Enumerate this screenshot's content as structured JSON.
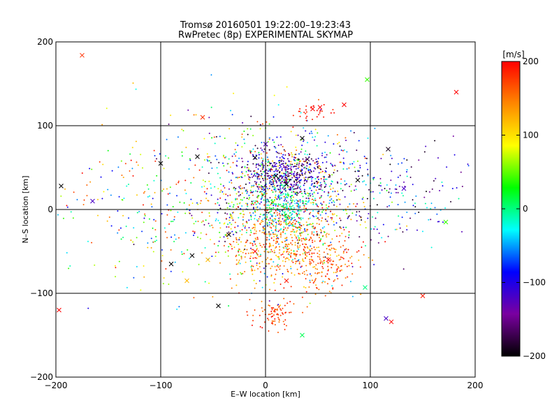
{
  "chart_data": {
    "type": "scatter",
    "title": "Tromsø 20160501 19:22:00–19:23:43",
    "subtitle": "RwPretec (8p) EXPERIMENTAL SKYMAP",
    "xlabel": "E–W location [km]",
    "ylabel": "N–S location [km]",
    "xlim": [
      -200,
      200
    ],
    "ylim": [
      -200,
      200
    ],
    "xticks": [
      -200,
      -100,
      0,
      100,
      200
    ],
    "yticks": [
      -200,
      -100,
      0,
      100,
      200
    ],
    "grid": true,
    "colorbar": {
      "label": "[m/s]",
      "range": [
        -200,
        200
      ],
      "ticks": [
        -200,
        -100,
        0,
        100,
        200
      ],
      "colors": [
        "#000000",
        "#7a00a0",
        "#0000ff",
        "#00ffff",
        "#00ff00",
        "#ffff00",
        "#ff8800",
        "#ff0000"
      ]
    },
    "series": [
      {
        "marker": "cross",
        "points": [
          {
            "x": -175,
            "y": 184,
            "v": 180
          },
          {
            "x": 182,
            "y": 140,
            "v": 200
          },
          {
            "x": 97,
            "y": 155,
            "v": 40
          },
          {
            "x": -60,
            "y": 110,
            "v": 180
          },
          {
            "x": -195,
            "y": 28,
            "v": -200
          },
          {
            "x": -165,
            "y": 10,
            "v": -120
          },
          {
            "x": -197,
            "y": -120,
            "v": 200
          },
          {
            "x": -90,
            "y": -65,
            "v": -200
          },
          {
            "x": -45,
            "y": -115,
            "v": -200
          },
          {
            "x": 35,
            "y": -150,
            "v": 10
          },
          {
            "x": 115,
            "y": -130,
            "v": -120
          },
          {
            "x": 120,
            "y": -134,
            "v": 200
          },
          {
            "x": 150,
            "y": -103,
            "v": 190
          },
          {
            "x": 172,
            "y": -15,
            "v": 40
          },
          {
            "x": 132,
            "y": 25,
            "v": -120
          },
          {
            "x": 117,
            "y": 72,
            "v": -190
          },
          {
            "x": 75,
            "y": 125,
            "v": 200
          },
          {
            "x": 45,
            "y": 120,
            "v": 200
          },
          {
            "x": 35,
            "y": 85,
            "v": -200
          },
          {
            "x": -100,
            "y": 55,
            "v": -200
          },
          {
            "x": -65,
            "y": 63,
            "v": -200
          },
          {
            "x": -35,
            "y": -30,
            "v": -200
          },
          {
            "x": 0,
            "y": 78,
            "v": -120
          },
          {
            "x": -70,
            "y": -55,
            "v": -200
          },
          {
            "x": 95,
            "y": -93,
            "v": 0
          },
          {
            "x": -55,
            "y": -60,
            "v": 120
          },
          {
            "x": 60,
            "y": -60,
            "v": 200
          },
          {
            "x": 20,
            "y": -85,
            "v": 190
          },
          {
            "x": 88,
            "y": 35,
            "v": -200
          },
          {
            "x": -75,
            "y": -85,
            "v": 120
          },
          {
            "x": 10,
            "y": 40,
            "v": -200
          },
          {
            "x": 20,
            "y": 30,
            "v": -200
          },
          {
            "x": -10,
            "y": -50,
            "v": 200
          },
          {
            "x": 40,
            "y": 60,
            "v": -180
          },
          {
            "x": 52,
            "y": 122,
            "v": 200
          },
          {
            "x": -10,
            "y": 62,
            "v": -200
          }
        ]
      }
    ],
    "clusters": [
      {
        "cx": 10,
        "cy": 20,
        "sx": 40,
        "sy": 40,
        "n": 900,
        "vmin": -200,
        "vmax": 200
      },
      {
        "cx": 20,
        "cy": 42,
        "sx": 20,
        "sy": 12,
        "n": 350,
        "vmin": -200,
        "vmax": -80
      },
      {
        "cx": 20,
        "cy": -40,
        "sx": 30,
        "sy": 25,
        "n": 500,
        "vmin": 100,
        "vmax": 200
      },
      {
        "cx": 10,
        "cy": -125,
        "sx": 12,
        "sy": 10,
        "n": 80,
        "vmin": 150,
        "vmax": 200
      },
      {
        "cx": 55,
        "cy": -70,
        "sx": 15,
        "sy": 15,
        "n": 120,
        "vmin": 130,
        "vmax": 200
      },
      {
        "cx": 45,
        "cy": 115,
        "sx": 10,
        "sy": 6,
        "n": 30,
        "vmin": 180,
        "vmax": 200
      },
      {
        "cx": 100,
        "cy": 20,
        "sx": 50,
        "sy": 30,
        "n": 250,
        "vmin": -200,
        "vmax": 0
      },
      {
        "cx": -80,
        "cy": 0,
        "sx": 60,
        "sy": 50,
        "n": 350,
        "vmin": -100,
        "vmax": 200
      },
      {
        "cx": 15,
        "cy": 0,
        "sx": 15,
        "sy": 15,
        "n": 200,
        "vmin": -60,
        "vmax": 30
      }
    ]
  }
}
